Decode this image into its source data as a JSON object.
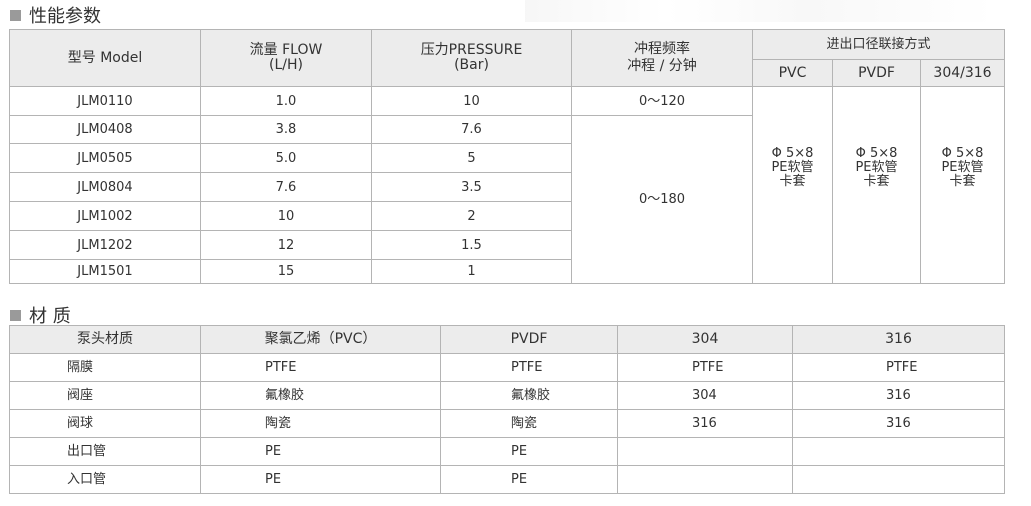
{
  "performance": {
    "title": "性能参数",
    "headers": {
      "model": "型号 Model",
      "flow": "流量 FLOW",
      "flow_unit": "(L/H)",
      "pressure": "压力PRESSURE",
      "pressure_unit": "(Bar)",
      "stroke": "冲程频率",
      "stroke_unit": "冲程 / 分钟",
      "connection": "进出口径联接方式",
      "conn_pvc": "PVC",
      "conn_pvdf": "PVDF",
      "conn_ss": "304/316"
    },
    "rows": [
      {
        "model": "JLM0110",
        "flow": "1.0",
        "pressure": "10"
      },
      {
        "model": "JLM0408",
        "flow": "3.8",
        "pressure": "7.6"
      },
      {
        "model": "JLM0505",
        "flow": "5.0",
        "pressure": "5"
      },
      {
        "model": "JLM0804",
        "flow": "7.6",
        "pressure": "3.5"
      },
      {
        "model": "JLM1002",
        "flow": "10",
        "pressure": "2"
      },
      {
        "model": "JLM1202",
        "flow": "12",
        "pressure": "1.5"
      },
      {
        "model": "JLM1501",
        "flow": "15",
        "pressure": "1"
      }
    ],
    "stroke_first": "0～120",
    "stroke_rest": "0～180",
    "connection_value": {
      "line1": "Φ 5×8",
      "line2": "PE软管",
      "line3": "卡套"
    }
  },
  "materials": {
    "title": "材 质",
    "headers": [
      "泵头材质",
      "聚氯乙烯（PVC）",
      "PVDF",
      "304",
      "316"
    ],
    "rows": [
      [
        "隔膜",
        "PTFE",
        "PTFE",
        "PTFE",
        "PTFE"
      ],
      [
        "阀座",
        "氟橡胶",
        "氟橡胶",
        "304",
        "316"
      ],
      [
        "阀球",
        "陶瓷",
        "陶瓷",
        "316",
        "316"
      ],
      [
        "出口管",
        "PE",
        "PE",
        "",
        ""
      ],
      [
        "入口管",
        "PE",
        "PE",
        "",
        ""
      ]
    ]
  }
}
